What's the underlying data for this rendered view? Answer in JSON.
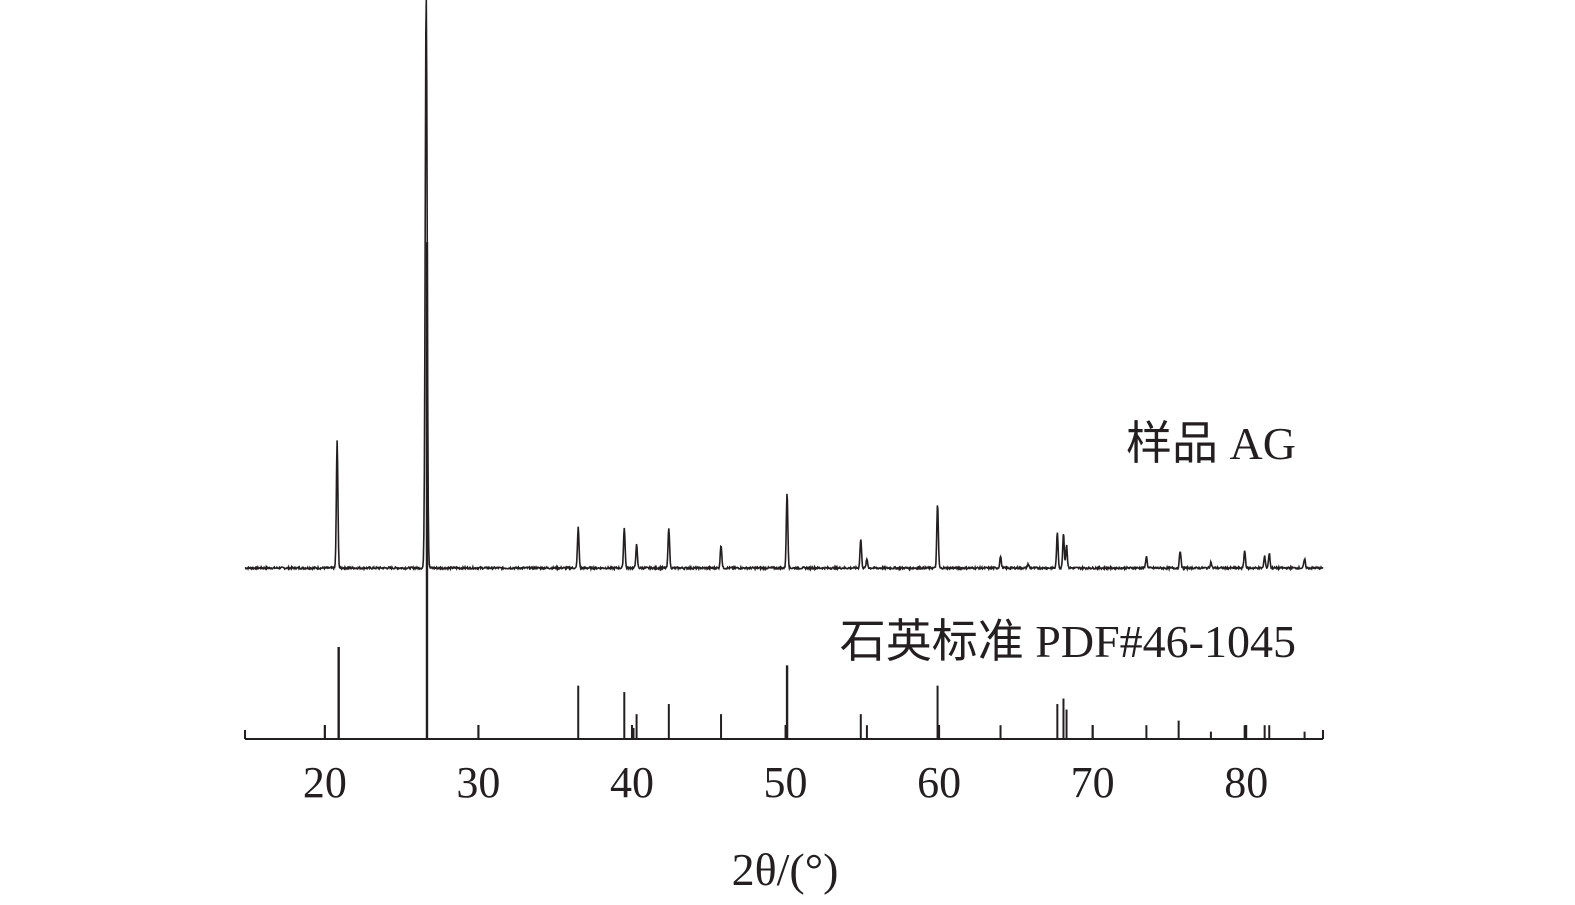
{
  "chart_data": {
    "type": "line",
    "xlabel": "2θ/(°)",
    "xlim": [
      14.8,
      85
    ],
    "x_ticks": [
      20,
      30,
      40,
      50,
      60,
      70,
      80
    ],
    "axis_visible": "bottom only",
    "grid": false,
    "colors": {
      "ink": "#231f20",
      "background": "#ffffff"
    },
    "series": [
      {
        "name": "样品 AG",
        "style": "diffraction pattern (upper trace)",
        "relative_scale": 1.0,
        "peaks": [
          {
            "x": 20.8,
            "y": 22
          },
          {
            "x": 26.6,
            "y": 100
          },
          {
            "x": 36.5,
            "y": 7
          },
          {
            "x": 39.5,
            "y": 7
          },
          {
            "x": 40.3,
            "y": 4
          },
          {
            "x": 42.4,
            "y": 7
          },
          {
            "x": 45.8,
            "y": 4
          },
          {
            "x": 50.1,
            "y": 13
          },
          {
            "x": 54.9,
            "y": 5
          },
          {
            "x": 55.3,
            "y": 1.5
          },
          {
            "x": 59.9,
            "y": 11
          },
          {
            "x": 64.0,
            "y": 2
          },
          {
            "x": 65.8,
            "y": 0.7
          },
          {
            "x": 67.7,
            "y": 6
          },
          {
            "x": 68.1,
            "y": 6
          },
          {
            "x": 68.3,
            "y": 4
          },
          {
            "x": 73.5,
            "y": 2
          },
          {
            "x": 75.7,
            "y": 3
          },
          {
            "x": 77.7,
            "y": 1
          },
          {
            "x": 79.9,
            "y": 3
          },
          {
            "x": 81.2,
            "y": 2
          },
          {
            "x": 81.5,
            "y": 2.5
          },
          {
            "x": 83.8,
            "y": 1.5
          }
        ]
      },
      {
        "name": "石英标准 PDF#46-1045",
        "style": "reference stick pattern (lower)",
        "sticks": [
          {
            "x": 20.0,
            "y": 15
          },
          {
            "x": 20.9,
            "y": 100
          },
          {
            "x": 26.65,
            "y": 540
          },
          {
            "x": 30.0,
            "y": 15
          },
          {
            "x": 36.5,
            "y": 58
          },
          {
            "x": 39.5,
            "y": 51
          },
          {
            "x": 40.1,
            "y": 12
          },
          {
            "x": 40.3,
            "y": 27
          },
          {
            "x": 42.4,
            "y": 38
          },
          {
            "x": 45.8,
            "y": 27
          },
          {
            "x": 50.1,
            "y": 80
          },
          {
            "x": 54.9,
            "y": 27
          },
          {
            "x": 55.3,
            "y": 15
          },
          {
            "x": 59.9,
            "y": 58
          },
          {
            "x": 64.0,
            "y": 15
          },
          {
            "x": 67.7,
            "y": 38
          },
          {
            "x": 68.1,
            "y": 44
          },
          {
            "x": 68.3,
            "y": 32
          },
          {
            "x": 70.0,
            "y": 15
          },
          {
            "x": 73.5,
            "y": 15
          },
          {
            "x": 75.6,
            "y": 20
          },
          {
            "x": 77.7,
            "y": 8
          },
          {
            "x": 79.9,
            "y": 15
          },
          {
            "x": 81.2,
            "y": 15
          },
          {
            "x": 81.5,
            "y": 15
          },
          {
            "x": 83.8,
            "y": 8
          }
        ]
      }
    ]
  }
}
